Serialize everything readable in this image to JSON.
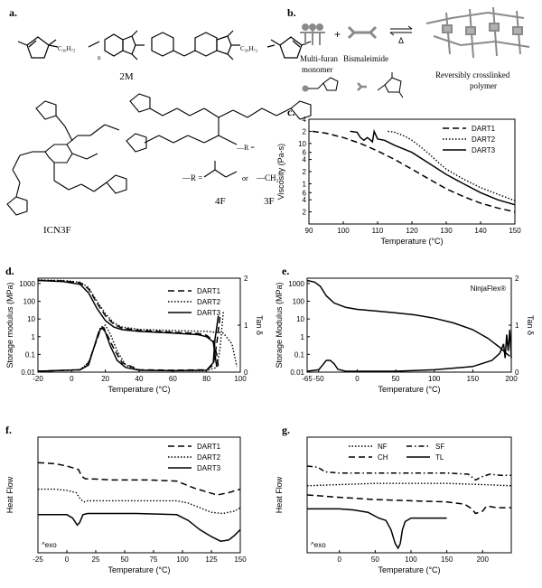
{
  "panels": {
    "a": {
      "letter": "a.",
      "molecules": {
        "bmi": "2M",
        "triazine": "ICN3F",
        "f4": "4F",
        "f3": "3F",
        "r_group": "—R =",
        "or_text": "or",
        "methyl": "—CH₃",
        "c36": "C₃₆H₇₂",
        "n": "n"
      }
    },
    "b": {
      "letter": "b.",
      "multi_furan": "Multi-furan\nmonomer",
      "bismaleimide": "Bismaleimide",
      "polymer": "Reversibly crosslinked\npolymer",
      "delta": "Δ",
      "plus": "+"
    },
    "c": {
      "letter": "c."
    },
    "d": {
      "letter": "d."
    },
    "e": {
      "letter": "e."
    },
    "f": {
      "letter": "f."
    },
    "g": {
      "letter": "g."
    }
  },
  "colors": {
    "line": "#000000",
    "gray": "#8a8a8a",
    "lightgray": "#b0b0b0"
  },
  "chart_data": [
    {
      "id": "c",
      "type": "line",
      "xlabel": "Temperature (°C)",
      "ylabel": "Viscosity (Pa-s)",
      "xlim": [
        90,
        150
      ],
      "ylim": [
        0.1,
        40
      ],
      "yscale": "log",
      "xticks": [
        90,
        100,
        110,
        120,
        130,
        140,
        150
      ],
      "yticks": [
        {
          "v": 0.2,
          "l": "2"
        },
        {
          "v": 0.4,
          "l": "4"
        },
        {
          "v": 0.6,
          "l": "6"
        },
        {
          "v": 1,
          "l": "1"
        },
        {
          "v": 2,
          "l": "2"
        },
        {
          "v": 4,
          "l": "4"
        },
        {
          "v": 6,
          "l": "6"
        },
        {
          "v": 10,
          "l": "10"
        },
        {
          "v": 20,
          "l": "2"
        },
        {
          "v": 40,
          "l": "4"
        }
      ],
      "legend": [
        "DART1",
        "DART2",
        "DART3"
      ],
      "series": [
        {
          "name": "DART1",
          "style": "dash",
          "x": [
            91,
            95,
            100,
            105,
            110,
            115,
            120,
            125,
            130,
            135,
            140,
            145,
            150
          ],
          "y": [
            20,
            18,
            14,
            10,
            6.5,
            4,
            2.3,
            1.3,
            0.75,
            0.48,
            0.33,
            0.25,
            0.2
          ]
        },
        {
          "name": "DART2",
          "style": "dot",
          "x": [
            113,
            115,
            118,
            120,
            122,
            125,
            128,
            130,
            135,
            140,
            145,
            150
          ],
          "y": [
            20,
            19,
            15,
            12,
            9,
            5.5,
            3.2,
            2.3,
            1.3,
            0.8,
            0.55,
            0.38
          ]
        },
        {
          "name": "DART3",
          "style": "solid",
          "x": [
            102,
            104,
            105,
            106,
            107,
            108,
            108.5,
            109,
            110,
            112,
            115,
            120,
            125,
            130,
            135,
            140,
            145,
            150
          ],
          "y": [
            20,
            19,
            14,
            12,
            14,
            12,
            11,
            20,
            13,
            12,
            9,
            6,
            3.2,
            1.7,
            1.0,
            0.6,
            0.4,
            0.3
          ]
        }
      ]
    },
    {
      "id": "d",
      "type": "line",
      "xlabel": "Temperature (°C)",
      "ylabel": "Storage modulus (MPa)",
      "y2label": "Tan δ",
      "xlim": [
        -20,
        100
      ],
      "ylim": [
        0.01,
        2000
      ],
      "yscale": "log",
      "y2lim": [
        0,
        2
      ],
      "xticks": [
        -20,
        0,
        20,
        40,
        60,
        80,
        100
      ],
      "yticks": [
        {
          "v": 0.01,
          "l": "0.01"
        },
        {
          "v": 0.1,
          "l": "0.1"
        },
        {
          "v": 1,
          "l": "1"
        },
        {
          "v": 10,
          "l": "10"
        },
        {
          "v": 100,
          "l": "100"
        },
        {
          "v": 1000,
          "l": "1000"
        }
      ],
      "y2ticks": [
        0,
        1,
        2
      ],
      "legend": [
        "DART1",
        "DART2",
        "DART3"
      ],
      "series": [
        {
          "name": "DART1",
          "style": "dash",
          "axis": "y",
          "x": [
            -20,
            -5,
            5,
            10,
            15,
            20,
            25,
            30,
            40,
            60,
            75,
            80,
            84,
            86,
            87
          ],
          "y": [
            1500,
            1400,
            1100,
            500,
            80,
            15,
            5,
            3,
            2.3,
            1.8,
            1.5,
            1.2,
            0.6,
            0.1,
            0.02
          ]
        },
        {
          "name": "DART1 tan δ",
          "style": "dash",
          "axis": "y2",
          "x": [
            -20,
            5,
            10,
            14,
            17,
            19,
            21,
            25,
            30,
            40,
            60,
            80,
            84,
            86,
            88
          ],
          "y": [
            0.02,
            0.05,
            0.2,
            0.6,
            0.9,
            0.95,
            0.8,
            0.5,
            0.2,
            0.05,
            0.04,
            0.05,
            0.15,
            0.6,
            1.2
          ]
        },
        {
          "name": "DART2",
          "style": "dot",
          "axis": "y",
          "x": [
            -20,
            -5,
            5,
            10,
            15,
            20,
            25,
            30,
            40,
            60,
            80,
            90,
            95,
            98
          ],
          "y": [
            1600,
            1500,
            1200,
            600,
            100,
            20,
            6,
            3.5,
            2.6,
            2.2,
            2,
            1.6,
            0.4,
            0.02
          ]
        },
        {
          "name": "DART2 tan δ",
          "style": "dot",
          "axis": "y2",
          "x": [
            -20,
            5,
            10,
            14,
            17,
            20,
            23,
            27,
            32,
            40,
            60,
            80,
            86,
            88,
            90
          ],
          "y": [
            0.02,
            0.05,
            0.2,
            0.6,
            0.95,
            1.0,
            0.8,
            0.45,
            0.15,
            0.04,
            0.03,
            0.03,
            0.1,
            0.5,
            1.3
          ]
        },
        {
          "name": "DART3",
          "style": "solid",
          "axis": "y",
          "x": [
            -20,
            -5,
            5,
            10,
            15,
            20,
            25,
            30,
            40,
            60,
            75,
            80,
            84,
            86
          ],
          "y": [
            1500,
            1300,
            900,
            300,
            40,
            8,
            3.5,
            2.5,
            2,
            1.6,
            1.3,
            1.0,
            0.5,
            0.02
          ]
        },
        {
          "name": "DART3 tan δ",
          "style": "solid",
          "axis": "y2",
          "x": [
            -20,
            5,
            10,
            13,
            16,
            18,
            20,
            23,
            27,
            32,
            40,
            60,
            80,
            84,
            85,
            87
          ],
          "y": [
            0.02,
            0.05,
            0.15,
            0.5,
            0.85,
            0.95,
            0.85,
            0.55,
            0.25,
            0.1,
            0.04,
            0.03,
            0.04,
            0.2,
            0.7,
            1.2
          ]
        }
      ]
    },
    {
      "id": "e",
      "type": "line",
      "xlabel": "Temperature (°C)",
      "ylabel": "Storage Modulus (MPa)",
      "y2label": "Tan δ",
      "xlim": [
        -65,
        200
      ],
      "ylim": [
        0.01,
        2000
      ],
      "yscale": "log",
      "y2lim": [
        0,
        2
      ],
      "xticks": [
        {
          "v": -65,
          "l": "-65"
        },
        {
          "v": -50,
          "l": "-50"
        },
        {
          "v": 0,
          "l": "0"
        },
        {
          "v": 50,
          "l": "50"
        },
        {
          "v": 100,
          "l": "100"
        },
        {
          "v": 150,
          "l": "150"
        },
        {
          "v": 200,
          "l": "200"
        }
      ],
      "yticks": [
        {
          "v": 0.01,
          "l": "0.01"
        },
        {
          "v": 0.1,
          "l": "0.1"
        },
        {
          "v": 1,
          "l": "1"
        },
        {
          "v": 10,
          "l": "10"
        },
        {
          "v": 100,
          "l": "100"
        },
        {
          "v": 1000,
          "l": "1000"
        }
      ],
      "y2ticks": [
        0,
        1,
        2
      ],
      "annotation": "NinjaFlex®",
      "series": [
        {
          "name": "modulus",
          "style": "solid",
          "axis": "y",
          "x": [
            -65,
            -55,
            -48,
            -40,
            -30,
            -15,
            0,
            25,
            50,
            75,
            100,
            125,
            150,
            170,
            185,
            193,
            198
          ],
          "y": [
            1500,
            1200,
            700,
            200,
            80,
            45,
            35,
            28,
            22,
            17,
            11,
            6,
            2.5,
            0.8,
            0.25,
            0.12,
            0.08
          ]
        },
        {
          "name": "tan δ",
          "style": "solid",
          "axis": "y2",
          "x": [
            -65,
            -50,
            -45,
            -40,
            -35,
            -30,
            -25,
            -15,
            0,
            50,
            100,
            150,
            175,
            185,
            190,
            192,
            194,
            196,
            198,
            200
          ],
          "y": [
            0.02,
            0.05,
            0.15,
            0.25,
            0.25,
            0.18,
            0.06,
            0.02,
            0.02,
            0.02,
            0.05,
            0.12,
            0.25,
            0.4,
            0.6,
            0.3,
            0.8,
            0.45,
            0.9,
            0.3
          ]
        }
      ]
    },
    {
      "id": "f",
      "type": "line",
      "xlabel": "Temperature (°C)",
      "ylabel": "Heat Flow",
      "note": "^exo",
      "xlim": [
        -25,
        150
      ],
      "ylim": [
        0,
        1
      ],
      "xticks": [
        -25,
        0,
        25,
        50,
        75,
        100,
        125,
        150
      ],
      "legend": [
        "DART1",
        "DART2",
        "DART3"
      ],
      "series": [
        {
          "name": "DART1",
          "style": "dash",
          "x": [
            -25,
            -10,
            0,
            10,
            13,
            16,
            20,
            40,
            70,
            95,
            100,
            110,
            120,
            130,
            140,
            150
          ],
          "y": [
            0.78,
            0.77,
            0.75,
            0.72,
            0.66,
            0.64,
            0.64,
            0.63,
            0.63,
            0.62,
            0.6,
            0.56,
            0.53,
            0.5,
            0.52,
            0.55
          ]
        },
        {
          "name": "DART2",
          "style": "dot",
          "x": [
            -25,
            -10,
            0,
            8,
            12,
            15,
            18,
            30,
            60,
            95,
            105,
            115,
            125,
            135,
            145,
            150
          ],
          "y": [
            0.55,
            0.55,
            0.54,
            0.52,
            0.46,
            0.44,
            0.45,
            0.45,
            0.45,
            0.45,
            0.43,
            0.39,
            0.35,
            0.34,
            0.36,
            0.39
          ]
        },
        {
          "name": "DART3",
          "style": "solid",
          "x": [
            -25,
            -10,
            0,
            5,
            9,
            11,
            14,
            18,
            25,
            60,
            95,
            105,
            115,
            125,
            133,
            140,
            145,
            150
          ],
          "y": [
            0.33,
            0.33,
            0.33,
            0.3,
            0.24,
            0.26,
            0.33,
            0.34,
            0.34,
            0.34,
            0.33,
            0.28,
            0.2,
            0.14,
            0.1,
            0.11,
            0.15,
            0.2
          ]
        }
      ]
    },
    {
      "id": "g",
      "type": "line",
      "xlabel": "Temperature (°C)",
      "ylabel": "Heat Flow",
      "note": "^exo",
      "xlim": [
        -45,
        240
      ],
      "ylim": [
        0,
        1
      ],
      "xticks": [
        0,
        50,
        100,
        150,
        200
      ],
      "legend": [
        "NF",
        "SF",
        "CH",
        "TL"
      ],
      "series": [
        {
          "name": "NF",
          "style": "dot",
          "x": [
            -45,
            0,
            50,
            100,
            150,
            200,
            240
          ],
          "y": [
            0.58,
            0.59,
            0.6,
            0.6,
            0.6,
            0.59,
            0.58
          ]
        },
        {
          "name": "SF",
          "style": "dashdot",
          "x": [
            -45,
            -30,
            -20,
            0,
            50,
            100,
            150,
            180,
            190,
            200,
            210,
            225,
            240
          ],
          "y": [
            0.75,
            0.74,
            0.7,
            0.69,
            0.69,
            0.69,
            0.69,
            0.68,
            0.63,
            0.66,
            0.68,
            0.67,
            0.67
          ]
        },
        {
          "name": "CH",
          "style": "dash",
          "x": [
            -45,
            0,
            50,
            100,
            150,
            175,
            185,
            190,
            200,
            205,
            210,
            220,
            240
          ],
          "y": [
            0.5,
            0.48,
            0.46,
            0.45,
            0.44,
            0.42,
            0.38,
            0.34,
            0.36,
            0.4,
            0.4,
            0.39,
            0.39
          ]
        },
        {
          "name": "TL",
          "style": "solid",
          "x": [
            -45,
            -20,
            0,
            20,
            40,
            55,
            65,
            72,
            78,
            82,
            85,
            88,
            92,
            100,
            120,
            150
          ],
          "y": [
            0.38,
            0.38,
            0.38,
            0.37,
            0.35,
            0.3,
            0.28,
            0.2,
            0.08,
            0.04,
            0.08,
            0.2,
            0.27,
            0.3,
            0.3,
            0.3
          ]
        }
      ]
    }
  ]
}
